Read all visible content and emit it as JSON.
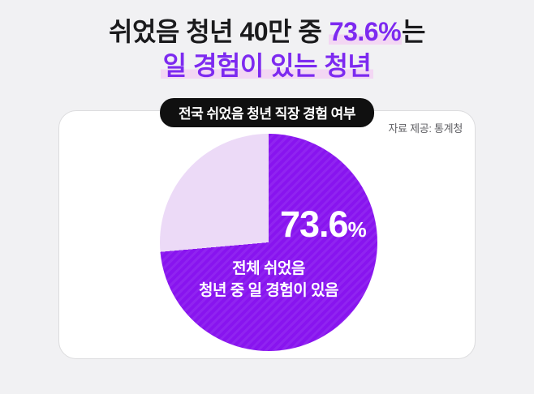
{
  "headline": {
    "line1_prefix": "쉬었음 청년 40만 중 ",
    "line1_highlight": "73.6%",
    "line1_suffix": "는",
    "line2": "일 경험이 있는 청년"
  },
  "badge": {
    "label": "전국 쉬었음 청년 직장 경험 여부"
  },
  "card": {
    "source": "자료 제공: 통계청"
  },
  "pie": {
    "value_label": "73.6",
    "percent_sign": "%",
    "sublabel_line1": "전체 쉬었음",
    "sublabel_line2": "청년 중 일 경험이 있음"
  },
  "colors": {
    "page_bg": "#f1f1f3",
    "title_text": "#1b1b1d",
    "accent": "#7d2af0",
    "highlight": "#f3d7f3",
    "badge_bg": "#101010",
    "pie_main": "#8814ef",
    "pie_rest": "#ecdaf7"
  },
  "chart_data": {
    "type": "pie",
    "title": "전국 쉬었음 청년 직장 경험 여부",
    "source": "자료 제공: 통계청",
    "values": [
      73.6,
      26.4
    ],
    "labels": [
      "전체 쉬었음 청년 중 일 경험이 있음",
      ""
    ],
    "colors": [
      "#8814ef",
      "#ecdaf7"
    ],
    "unit": "%",
    "start_angle_deg": 0,
    "direction": "clockwise",
    "legend": "none",
    "annotations": [
      "73.6%",
      "전체 쉬었음",
      "청년 중 일 경험이 있음"
    ]
  }
}
